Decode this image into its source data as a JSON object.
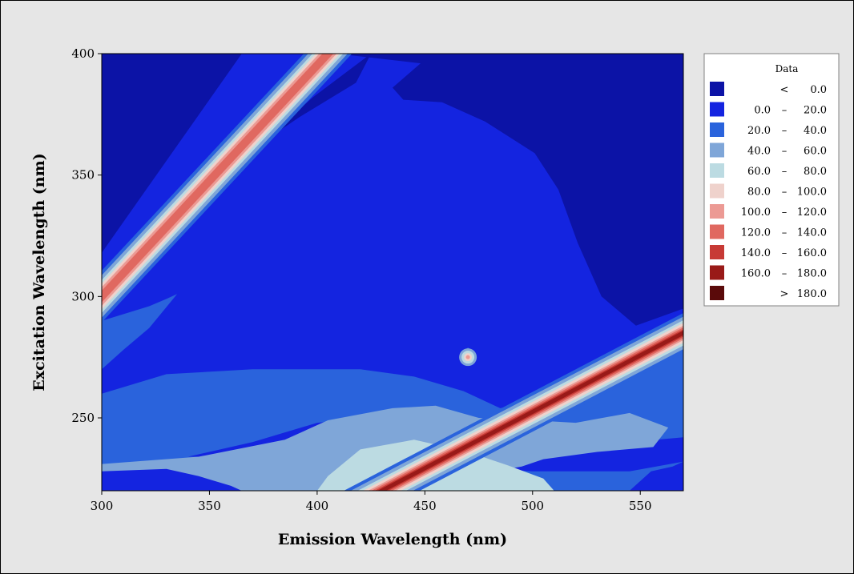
{
  "chart_data": {
    "type": "heatmap",
    "xlabel": "Emission Wavelength (nm)",
    "ylabel": "Excitation Wavelength (nm)",
    "xlim": [
      300,
      570
    ],
    "ylim": [
      220,
      400
    ],
    "xticks": [
      "300",
      "350",
      "400",
      "450",
      "500",
      "550"
    ],
    "yticks": [
      "250",
      "300",
      "350",
      "400"
    ],
    "legend": {
      "title": "Data",
      "placement": "right",
      "entries": [
        {
          "low": "",
          "sep": "<",
          "high": "0.0",
          "color": "#0c13a6"
        },
        {
          "low": "0.0",
          "sep": "–",
          "high": "20.0",
          "color": "#1424e0"
        },
        {
          "low": "20.0",
          "sep": "–",
          "high": "40.0",
          "color": "#2a63dc"
        },
        {
          "low": "40.0",
          "sep": "–",
          "high": "60.0",
          "color": "#7fa6d8"
        },
        {
          "low": "60.0",
          "sep": "–",
          "high": "80.0",
          "color": "#bcdbe2"
        },
        {
          "low": "80.0",
          "sep": "–",
          "high": "100.0",
          "color": "#efd2cc"
        },
        {
          "low": "100.0",
          "sep": "–",
          "high": "120.0",
          "color": "#ec9a94"
        },
        {
          "low": "120.0",
          "sep": "–",
          "high": "140.0",
          "color": "#e06860"
        },
        {
          "low": "140.0",
          "sep": "–",
          "high": "160.0",
          "color": "#c73a35"
        },
        {
          "low": "160.0",
          "sep": "–",
          "high": "180.0",
          "color": "#991a18"
        },
        {
          "low": "",
          "sep": ">",
          "high": "180.0",
          "color": "#5a0a0a"
        }
      ]
    },
    "contours": {
      "background_level": 1,
      "regions": [
        {
          "level": 0,
          "points": [
            [
              300,
              400
            ],
            [
              365,
              400
            ],
            [
              300,
              318
            ]
          ]
        },
        {
          "level": 0,
          "points": [
            [
              409,
              400
            ],
            [
              570,
              400
            ],
            [
              570,
              295
            ],
            [
              548,
              288
            ],
            [
              532,
              300
            ],
            [
              521,
              322
            ],
            [
              512,
              344
            ],
            [
              501,
              359
            ],
            [
              478,
              372
            ],
            [
              458,
              380
            ],
            [
              440,
              381
            ],
            [
              435,
              386
            ],
            [
              448,
              396
            ]
          ]
        },
        {
          "level": 0,
          "points": [
            [
              425,
              400
            ],
            [
              418,
              388
            ],
            [
              392,
              374
            ],
            [
              372,
              362
            ],
            [
              350,
              350
            ],
            [
              375,
              364
            ],
            [
              398,
              382
            ]
          ]
        },
        {
          "level": 2,
          "points": [
            [
              300,
              290
            ],
            [
              322,
              296
            ],
            [
              330,
              299
            ],
            [
              335,
              301
            ],
            [
              322,
              287
            ],
            [
              310,
              278
            ],
            [
              300,
              270
            ]
          ]
        },
        {
          "level": 2,
          "points": [
            [
              300,
              260
            ],
            [
              330,
              268
            ],
            [
              370,
              270
            ],
            [
              420,
              270
            ],
            [
              445,
              267
            ],
            [
              468,
              261
            ],
            [
              485,
              254
            ],
            [
              520,
              260
            ],
            [
              545,
              270
            ],
            [
              570,
              278
            ],
            [
              570,
              242
            ],
            [
              545,
              240
            ],
            [
              520,
              242
            ],
            [
              500,
              245
            ],
            [
              470,
              250
            ],
            [
              445,
              252
            ],
            [
              400,
              248
            ],
            [
              370,
              240
            ],
            [
              340,
              234
            ],
            [
              300,
              234
            ]
          ]
        },
        {
          "level": 2,
          "points": [
            [
              300,
              234
            ],
            [
              350,
              234
            ],
            [
              400,
              233
            ],
            [
              450,
              230
            ],
            [
              500,
              228
            ],
            [
              545,
              228
            ],
            [
              570,
              232
            ],
            [
              570,
              220
            ],
            [
              300,
              220
            ]
          ]
        },
        {
          "level": 2,
          "points": [
            [
              467,
              276
            ],
            [
              470,
              279
            ],
            [
              474,
              276
            ],
            [
              470,
              272
            ]
          ]
        },
        {
          "level": 3,
          "points": [
            [
              300,
              231
            ],
            [
              345,
              234
            ],
            [
              385,
              241
            ],
            [
              405,
              249
            ],
            [
              435,
              254
            ],
            [
              455,
              255
            ],
            [
              475,
              250
            ],
            [
              500,
              249
            ],
            [
              520,
              248
            ],
            [
              545,
              252
            ],
            [
              563,
              246
            ],
            [
              556,
              238
            ],
            [
              530,
              236
            ],
            [
              505,
              233
            ],
            [
              495,
              230
            ],
            [
              470,
              226
            ],
            [
              440,
              222
            ],
            [
              400,
              220
            ],
            [
              310,
              220
            ],
            [
              300,
              224
            ]
          ]
        },
        {
          "level": 3,
          "points": [
            [
              300,
              225
            ],
            [
              318,
              226
            ],
            [
              325,
              223
            ],
            [
              320,
              220
            ],
            [
              300,
              220
            ]
          ]
        },
        {
          "level": 4,
          "points": [
            [
              405,
              226
            ],
            [
              420,
              237
            ],
            [
              445,
              241
            ],
            [
              470,
              236
            ],
            [
              490,
              230
            ],
            [
              505,
              225
            ],
            [
              510,
              220
            ],
            [
              400,
              220
            ]
          ]
        },
        {
          "level": 1,
          "points": [
            [
              300,
              220
            ],
            [
              300,
              228
            ],
            [
              330,
              229
            ],
            [
              345,
              226
            ],
            [
              360,
              222
            ],
            [
              365,
              220
            ]
          ]
        },
        {
          "level": 1,
          "points": [
            [
              545,
              220
            ],
            [
              555,
              228
            ],
            [
              565,
              230
            ],
            [
              570,
              232
            ],
            [
              570,
              220
            ]
          ]
        }
      ],
      "ridges": [
        {
          "x0": 300,
          "y0": 300,
          "x1": 405,
          "y1": 400,
          "band_widths": [
            22,
            18,
            14,
            11,
            8,
            5
          ]
        },
        {
          "x0": 430,
          "y0": 220,
          "x1": 570,
          "y1": 285,
          "band_widths": [
            22,
            18,
            14,
            11,
            8,
            6,
            4,
            2.5
          ]
        }
      ],
      "spot": {
        "x": 470,
        "y": 275
      }
    }
  }
}
